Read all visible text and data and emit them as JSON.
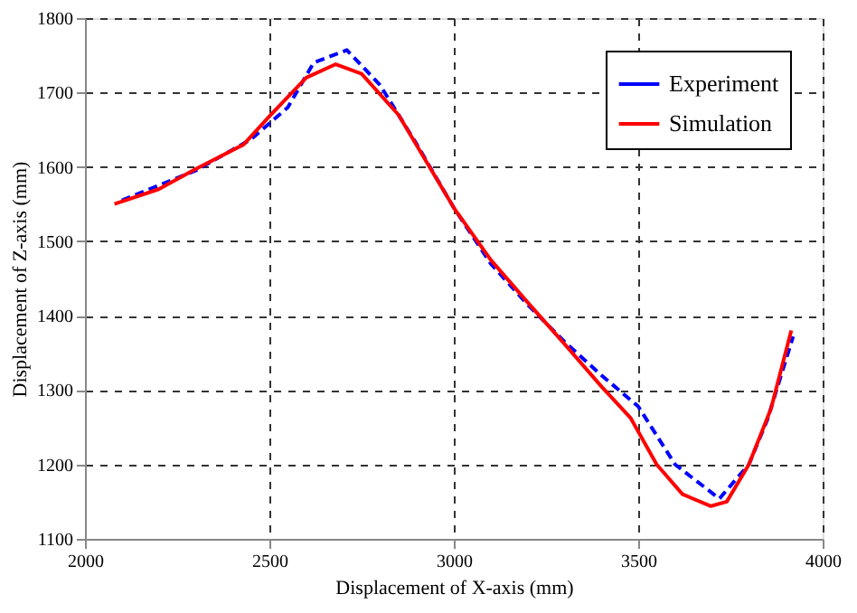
{
  "chart_data": {
    "type": "line",
    "xlabel": "Displacement of X-axis (mm)",
    "ylabel": "Displacement of Z-axis (mm)",
    "xlim": [
      2000,
      4000
    ],
    "xticks": [
      2000,
      2500,
      3000,
      3500,
      4000
    ],
    "ylim": [
      1100,
      1800
    ],
    "yticks": [
      1100,
      1200,
      1300,
      1400,
      1500,
      1600,
      1700,
      1800
    ],
    "grid": true,
    "legend": "top right",
    "marker": "none",
    "series": [
      {
        "name": "Experiment",
        "color": "#0000ff",
        "line_style": "dashed",
        "x": [
          2100,
          2300,
          2450,
          2550,
          2620,
          2710,
          2800,
          2900,
          3000,
          3100,
          3200,
          3300,
          3400,
          3500,
          3600,
          3720,
          3800,
          3850,
          3920
        ],
        "values": [
          1555,
          1595,
          1637,
          1680,
          1740,
          1757,
          1710,
          1630,
          1545,
          1470,
          1415,
          1365,
          1320,
          1278,
          1200,
          1154,
          1200,
          1260,
          1372
        ]
      },
      {
        "name": "Simulation",
        "color": "#ff0000",
        "line_style": "solid",
        "x": [
          2080,
          2200,
          2300,
          2430,
          2500,
          2600,
          2680,
          2750,
          2850,
          3000,
          3100,
          3200,
          3300,
          3400,
          3480,
          3550,
          3620,
          3697,
          3740,
          3800,
          3860,
          3915
        ],
        "values": [
          1550,
          1570,
          1597,
          1630,
          1668,
          1720,
          1738,
          1725,
          1670,
          1545,
          1475,
          1418,
          1362,
          1305,
          1262,
          1200,
          1160,
          1144,
          1150,
          1200,
          1275,
          1380
        ]
      }
    ]
  }
}
